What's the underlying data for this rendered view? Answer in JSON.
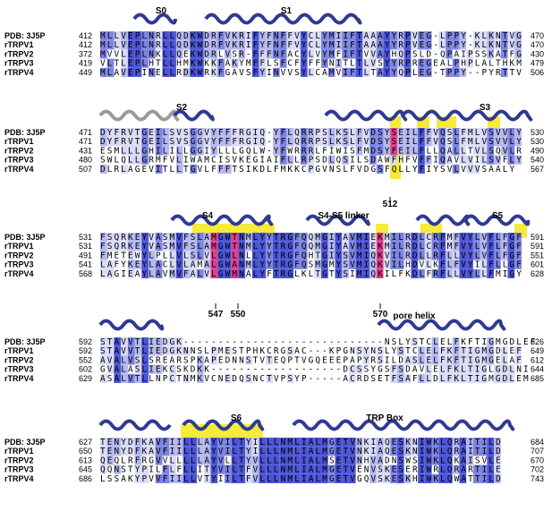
{
  "figure_title": "",
  "species_labels": [
    "PDB: 3J5P",
    "rTRPV1",
    "rTRPV2",
    "rTRPV3",
    "rTRPV4"
  ],
  "colors": {
    "strong": "#4b54d6",
    "medium": "#7c84e2",
    "light": "#b4b8ef",
    "pale": "#d9dbf7",
    "mutation": "#e23c8c",
    "highlight": "#f6ea3a",
    "helix_dark": "#2e3a92",
    "helix_light": "#9a9a9a"
  },
  "blocks": [
    {
      "id": "block-1",
      "annotations": [
        {
          "text": "S0"
        },
        {
          "text": "S1"
        }
      ],
      "rows": [
        {
          "name": "PDB: 3J5P",
          "start": "412",
          "seq": "MLLVEPLNRLLQDKWDRFVKRIFYFNFFVYCLYMIIFTAAAYYRPVEG-LPPY-KLKNTVG",
          "end": "470"
        },
        {
          "name": "rTRPV1",
          "start": "412",
          "seq": "MLLVEPLNRLLQDKWDRFVKRIFYFNFFVYCLYMIIFTAAAYYRPVEG-LPPY-KLKNTVG",
          "end": "470"
        },
        {
          "name": "rTRPV2",
          "start": "372",
          "seq": "MVVLEPLNKLLQEKWDRLVSR-FFFNFACYLVYMFIFTVVAYHQPSLD-QPAIPSSKATFG",
          "end": "430"
        },
        {
          "name": "rTRPV3",
          "start": "419",
          "seq": "VLTLEPLHTLLHMKWKKFAKYMFFLSFCFYFFYNITLTLVSYYRPREGEALPHPLALTHKM",
          "end": "479"
        },
        {
          "name": "rTRPV4",
          "start": "449",
          "seq": "MLAVEPINELLRDKWRKFGAVSFYINVVSYLCAMVIFTLTAYYQPLEG-TPPY--PYRTTV",
          "end": "506"
        }
      ]
    },
    {
      "id": "block-2",
      "annotations": [
        {
          "text": "S2"
        },
        {
          "text": "S3"
        },
        {
          "text": "512"
        }
      ],
      "rows": [
        {
          "name": "PDB: 3J5P",
          "start": "471",
          "seq": "DYFRVTGEILSVSGGVYFFFRGIQ-YFLQRRPSLKSLFVDSYSEILFFVQSLFMLVSVVLY",
          "end": "530"
        },
        {
          "name": "rTRPV1",
          "start": "471",
          "seq": "DYFRVTGEILSVSGGVYFFFRGIQ-YFLQRRPSLKSLFVDSYSEILFFVQSLFMLVSVVLY",
          "end": "530"
        },
        {
          "name": "rTRPV2",
          "start": "431",
          "seq": "ESMLLLGHILILLGGIYLLLGQLW-YFWRRRLFIWISFMDSYFEILFLLQALLTVLSQVLR",
          "end": "490"
        },
        {
          "name": "rTRPV3",
          "start": "480",
          "seq": "SWLQLLGRMFVLIWAMCISVKEGIAIFLLRPSDLQSILSDAWFHFVFFIQAVLVILSVFLY",
          "end": "540"
        },
        {
          "name": "rTRPV4",
          "start": "507",
          "seq": "DLRLAGEVITLLTGVLFFFTSIKDLFMKKCPGVNSLFVDGSFQLLYFIYSVLVVVSAALY",
          "end": "567"
        }
      ]
    },
    {
      "id": "block-3",
      "annotations": [
        {
          "text": "S4"
        },
        {
          "text": "S4-S5 linker"
        },
        {
          "text": "S5"
        },
        {
          "text": "547"
        },
        {
          "text": "550"
        },
        {
          "text": "570"
        }
      ],
      "rows": [
        {
          "name": "PDB: 3J5P",
          "start": "531",
          "seq": "FSQRKEYVASMVFSLAMGWTNMLYYTRGFQQMGIYAVMIEKMILRDLCRFMFVYLVFLFGF",
          "end": "591"
        },
        {
          "name": "rTRPV1",
          "start": "531",
          "seq": "FSQRKEYVASMVFSLAMGWTNMLYYTRGFQQMGIYAVMIEKMILRDLCRFMFVYLVFLFGF",
          "end": "591"
        },
        {
          "name": "rTRPV2",
          "start": "491",
          "seq": "FMETEWYLPLLVLSLVLGWLNLLYYTRGFQHTGIYSVMIQKVILRDLLRFLLVYLVFLFGF",
          "end": "551"
        },
        {
          "name": "rTRPV3",
          "start": "541",
          "seq": "LAFYKEYLACLVLAMALGWANMLYYTRGFQSMGMYSVMIQKVILHDVLKFLFVYILFLLGF",
          "end": "601"
        },
        {
          "name": "rTRPV4",
          "start": "568",
          "seq": "LAGIEAYLAVMVFALVLGWMNALYFTRGLKLTGTYSIMIQKILFKDLFRFLLVYLLFMIGY",
          "end": "628"
        }
      ]
    },
    {
      "id": "block-4",
      "annotations": [
        {
          "text": "pore helix"
        }
      ],
      "rows": [
        {
          "name": "PDB: 3J5P",
          "start": "592",
          "seq": "STAVVTLIEDGK-----------------------------NSLYSTCLELFKFTIGMGDLEF",
          "end": "626"
        },
        {
          "name": "rTRPV1",
          "start": "592",
          "seq": "STAVVTLIEDGKNNSLPMESTPHKCRGSAC---KPGNSYNSLYSTCLELFKFTIGMGDLEF",
          "end": "649"
        },
        {
          "name": "rTRPV2",
          "start": "552",
          "seq": "AVALVSLSREARSPKAPEDNNSTVTEQPTVGQEEEPAPYRSILDASLELFKFTIGMGELAF",
          "end": "612"
        },
        {
          "name": "rTRPV3",
          "start": "602",
          "seq": "GVALASLIEKCSKDKK-------------------DCSSYGSFSDAVLELFKLTIGLGDLNI",
          "end": "644"
        },
        {
          "name": "rTRPV4",
          "start": "629",
          "seq": "ASALVTLLNPCTNMKVCNEDQSNCTVPSYP-----ACRDSETFSAFLLDLFKLTIGMGDLEM",
          "end": "685"
        }
      ]
    },
    {
      "id": "block-5",
      "annotations": [
        {
          "text": "S6"
        },
        {
          "text": "TRP Box"
        }
      ],
      "rows": [
        {
          "name": "PDB: 3J5P",
          "start": "627",
          "seq": "TENYDFKAVFIILLLAYVILTYILLLNMLIALMGETVNKIAQESKNIWKLQRAITILD",
          "end": "684"
        },
        {
          "name": "rTRPV1",
          "start": "650",
          "seq": "TENYDFKAVFIILLLAYVILTYILLLNMLIALMGETVNKIAQESKNIWKLQRAITILD",
          "end": "707"
        },
        {
          "name": "rTRPV2",
          "start": "613",
          "seq": "QEQLRFRGVVLLLLLAYVLLTYVLLLNMLIALMSETVNHVADNSWSIWKLQKAISVLE",
          "end": "670"
        },
        {
          "name": "rTRPV3",
          "start": "645",
          "seq": "QQNSTYPILFLFLLITYVILTFVLLLNMLIALMGETVENVSKESERIWRLQRARTILE",
          "end": "702"
        },
        {
          "name": "rTRPV4",
          "start": "686",
          "seq": "LSSAKYPVVFIILLVTYIILTFVLLLNMLIALMGETVGQVSKESKHIWKLQWATTILD",
          "end": "743"
        }
      ]
    }
  ]
}
